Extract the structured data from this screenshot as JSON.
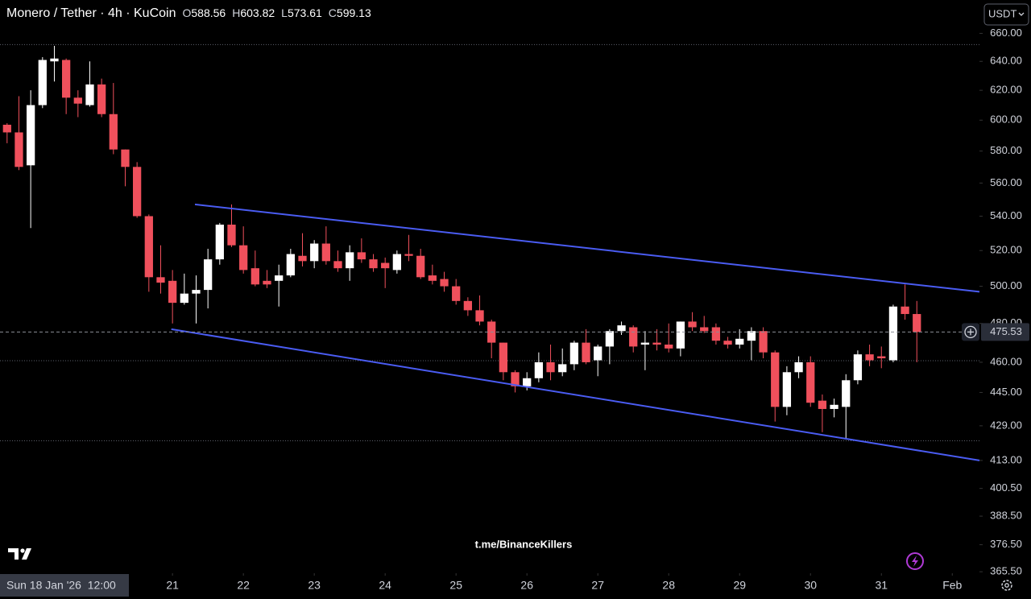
{
  "chart_data": {
    "type": "candlestick",
    "title": "Monero / Tether · 4h · KuCoin",
    "ohlc_header": [
      {
        "label": "O",
        "value": 588.56
      },
      {
        "label": "H",
        "value": 603.82
      },
      {
        "label": "L",
        "value": 573.61
      },
      {
        "label": "C",
        "value": 599.13
      }
    ],
    "currency": "USDT",
    "watermark": "t.me/BinanceKillers",
    "cursor_time": "Sun 18 Jan '26  12:00",
    "categories": [
      null,
      null,
      null,
      null,
      null,
      null,
      null,
      null,
      null,
      null,
      null,
      null,
      null,
      null,
      null,
      null,
      null,
      null,
      null,
      null,
      null,
      null,
      null,
      null,
      null,
      null,
      null,
      null,
      null,
      null,
      null,
      null,
      null,
      null,
      null,
      null,
      null,
      null,
      null,
      null,
      null,
      null,
      null,
      null,
      null,
      null,
      null,
      null,
      null,
      null,
      null,
      null,
      null,
      null,
      null,
      null,
      null,
      null,
      null,
      null,
      null,
      null,
      null,
      null,
      null,
      null,
      null,
      null,
      null,
      null,
      null,
      null,
      null,
      null,
      null,
      null,
      null,
      null
    ],
    "open": [
      597,
      592,
      571,
      610,
      640,
      641,
      615,
      610,
      624,
      604,
      581,
      570,
      540,
      505,
      503,
      491,
      496,
      498,
      515,
      535,
      523,
      510,
      503,
      503,
      506,
      517,
      514,
      524,
      514,
      510,
      519,
      515,
      513,
      509,
      518,
      517,
      506,
      504,
      500,
      492,
      487,
      481,
      470,
      455,
      448,
      452,
      460,
      455,
      459,
      470,
      461,
      468,
      476,
      478,
      469,
      470,
      469,
      467,
      481,
      478,
      478,
      471,
      469,
      471,
      476,
      465,
      438,
      455,
      460,
      441,
      437,
      438,
      451,
      464,
      463,
      461,
      489,
      485
    ],
    "high": [
      598,
      616,
      620,
      643,
      651,
      642,
      620,
      640,
      628,
      625,
      581,
      573,
      541,
      523,
      509,
      507,
      506,
      521,
      536,
      547,
      534,
      520,
      509,
      512,
      521,
      530,
      526,
      534,
      520,
      523,
      527,
      518,
      516,
      520,
      529,
      521,
      512,
      508,
      504,
      494,
      495,
      482,
      470,
      456,
      455,
      465,
      469,
      467,
      471,
      477,
      469,
      477,
      481,
      479,
      476,
      477,
      480,
      481,
      486,
      484,
      480,
      473,
      477,
      478,
      478,
      466,
      458,
      463,
      463,
      444,
      442,
      454,
      466,
      469,
      468,
      490,
      501,
      492
    ],
    "low": [
      585,
      568,
      533,
      608,
      626,
      604,
      602,
      609,
      602,
      578,
      558,
      539,
      497,
      496,
      480,
      490,
      480,
      488,
      512,
      522,
      507,
      500,
      499,
      489,
      505,
      511,
      510,
      512,
      508,
      503,
      513,
      508,
      499,
      507,
      514,
      504,
      501,
      497,
      490,
      484,
      479,
      462,
      451,
      445,
      446,
      450,
      451,
      453,
      456,
      459,
      453,
      459,
      474,
      465,
      456,
      466,
      465,
      463,
      476,
      475,
      469,
      467,
      467,
      461,
      462,
      431,
      434,
      452,
      438,
      426,
      433,
      423,
      449,
      458,
      457,
      460,
      482,
      460
    ],
    "close": [
      592,
      570,
      610,
      641,
      642,
      615,
      611,
      624,
      604,
      581,
      570,
      540,
      505,
      502,
      491,
      496,
      498,
      515,
      535,
      523,
      509,
      501,
      501,
      506,
      518,
      514,
      524,
      514,
      510,
      519,
      515,
      510,
      510,
      518,
      517,
      505,
      503,
      500,
      492,
      487,
      481,
      470,
      455,
      448,
      452,
      460,
      455,
      459,
      470,
      460,
      468,
      476,
      479,
      468,
      470,
      469,
      467,
      481,
      478,
      476,
      471,
      469,
      472,
      476,
      465,
      438,
      455,
      460,
      440,
      437,
      439,
      451,
      464,
      461,
      462,
      489,
      485,
      475.53
    ],
    "up_color": "#ffffff",
    "down_color": "#f0505c",
    "current_price": 475.53,
    "hlines": [
      651.9,
      460.8,
      422
    ],
    "trendlines": [
      {
        "color": "#4a5cf2",
        "x": [
          15.9,
          82.3
        ],
        "values": [
          547,
          497
        ]
      },
      {
        "color": "#4a5cf2",
        "x": [
          13.9,
          82.3
        ],
        "values": [
          477,
          413
        ]
      }
    ],
    "log_scale": true,
    "xlim": [
      -0.6,
      82.3
    ],
    "xticks": [
      {
        "value": 14,
        "label": "21"
      },
      {
        "value": 20,
        "label": "22"
      },
      {
        "value": 26,
        "label": "23"
      },
      {
        "value": 32,
        "label": "24"
      },
      {
        "value": 38,
        "label": "25"
      },
      {
        "value": 44,
        "label": "26"
      },
      {
        "value": 50,
        "label": "27"
      },
      {
        "value": 56,
        "label": "28"
      },
      {
        "value": 62,
        "label": "29"
      },
      {
        "value": 68,
        "label": "30"
      },
      {
        "value": 74,
        "label": "31"
      },
      {
        "value": 80,
        "label": "Feb"
      }
    ],
    "ylim": [
      684.6,
      364.9
    ],
    "yticks": [
      {
        "value": 660,
        "label": "660.00"
      },
      {
        "value": 640,
        "label": "640.00"
      },
      {
        "value": 620,
        "label": "620.00"
      },
      {
        "value": 600,
        "label": "600.00"
      },
      {
        "value": 580,
        "label": "580.00"
      },
      {
        "value": 560,
        "label": "560.00"
      },
      {
        "value": 540,
        "label": "540.00"
      },
      {
        "value": 520,
        "label": "520.00"
      },
      {
        "value": 500,
        "label": "500.00"
      },
      {
        "value": 480,
        "label": "480.00"
      },
      {
        "value": 460,
        "label": "460.00"
      },
      {
        "value": 445,
        "label": "445.00"
      },
      {
        "value": 429,
        "label": "429.00"
      },
      {
        "value": 413,
        "label": "413.00"
      },
      {
        "value": 400.5,
        "label": "400.50"
      },
      {
        "value": 388.5,
        "label": "388.50"
      },
      {
        "value": 376.5,
        "label": "376.50"
      },
      {
        "value": 365.5,
        "label": "365.50"
      }
    ]
  }
}
